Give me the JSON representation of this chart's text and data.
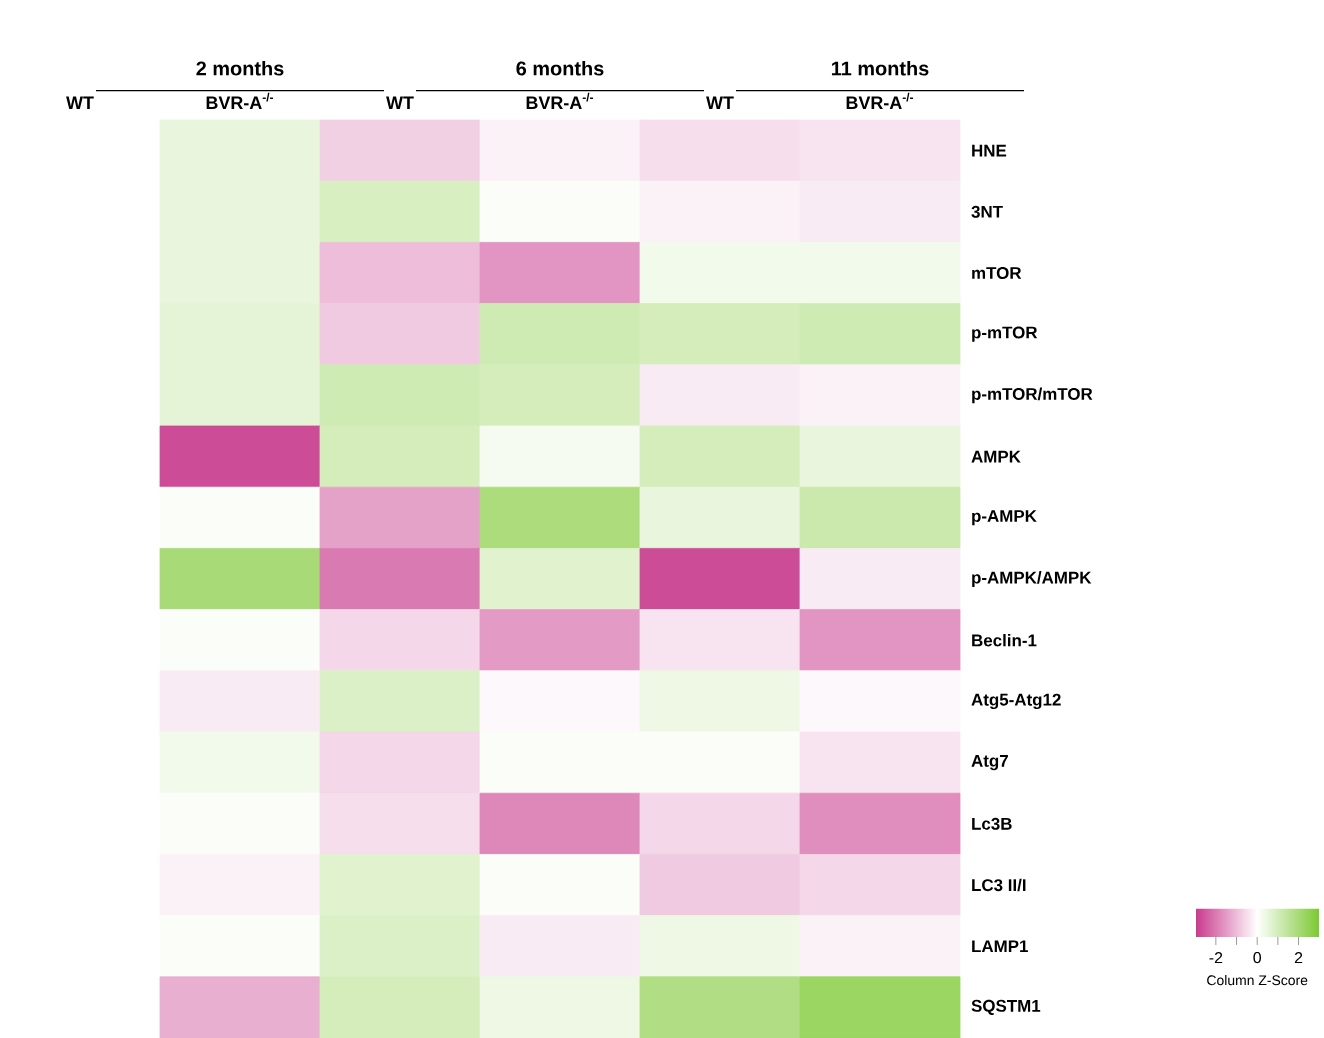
{
  "chart_data": {
    "type": "heatmap",
    "categories": [
      "WT",
      "BVR-A$^{-/-}$",
      "WT",
      "BVR-A$^{-/-}$",
      "WT",
      "BVR-A$^{-/-}$"
    ],
    "y_categories": [
      "HNE",
      "3NT",
      "mTOR",
      "p-mTOR",
      "p-mTOR/mTOR",
      "AMPK",
      "p-AMPK",
      "p-AMPK/AMPK",
      "Beclin-1",
      "Atg5-Atg12",
      "Atg7",
      "Lc3B",
      "LC3 II/I",
      "LAMP1",
      "SQSTM1"
    ],
    "annotations": [
      "2 months",
      "6 months",
      "11 months"
    ],
    "clabel": "Column Z-Score",
    "clim": [
      -3,
      3
    ],
    "cticks": [
      -2,
      {
        "value": -1,
        "label": null
      },
      0,
      {
        "value": 1,
        "label": null
      },
      2
    ],
    "cells": [
      [
        0,
        0.5,
        -0.7,
        -0.2,
        -0.5,
        -0.4
      ],
      [
        0,
        0.5,
        0.9,
        0.1,
        -0.2,
        -0.3
      ],
      [
        0,
        0.5,
        -1.0,
        -1.6,
        0.3,
        0.3
      ],
      [
        0,
        0.6,
        -0.8,
        1.1,
        1.0,
        1.1
      ],
      [
        0,
        0.6,
        1.1,
        1.0,
        -0.3,
        -0.2
      ],
      [
        0,
        -2.7,
        1.0,
        0.2,
        1.0,
        0.5
      ],
      [
        0,
        0.1,
        -1.4,
        1.9,
        0.5,
        1.2
      ],
      [
        0,
        2.0,
        -2.0,
        0.7,
        -2.7,
        -0.3
      ],
      [
        0,
        0.1,
        -0.6,
        -1.5,
        -0.4,
        -1.6
      ],
      [
        0,
        -0.3,
        0.8,
        -0.1,
        0.4,
        -0.1
      ],
      [
        0,
        0.3,
        -0.6,
        0.1,
        0.1,
        -0.4
      ],
      [
        0,
        0.1,
        -0.5,
        -1.8,
        -0.6,
        -1.7
      ],
      [
        0,
        -0.2,
        0.7,
        0.1,
        -0.8,
        -0.6
      ],
      [
        0,
        0.1,
        0.8,
        -0.3,
        0.4,
        -0.2
      ],
      [
        0,
        -1.2,
        1.0,
        0.4,
        1.8,
        2.3
      ]
    ]
  }
}
